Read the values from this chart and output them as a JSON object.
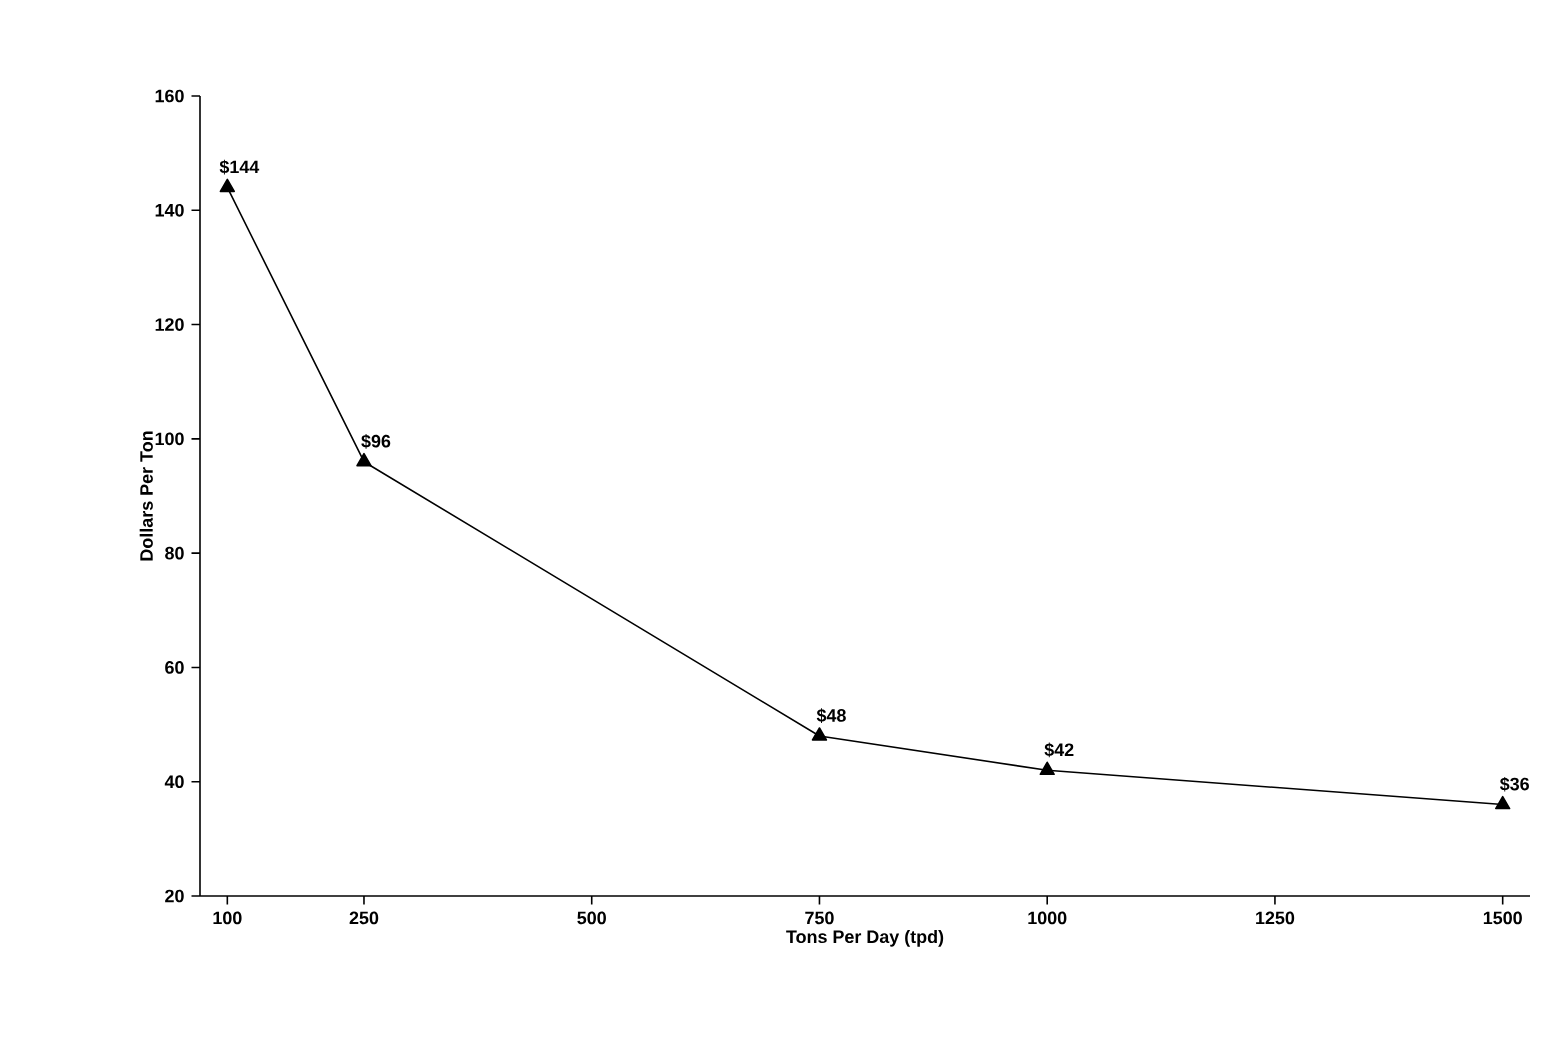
{
  "chart_data": {
    "type": "line",
    "xlabel": "Tons Per Day (tpd)",
    "ylabel": "Dollars Per Ton",
    "x": [
      100,
      250,
      750,
      1000,
      1500
    ],
    "series": [
      {
        "color": "#000000",
        "values": [
          144,
          96,
          48,
          42,
          36
        ],
        "value_labels": [
          "$144",
          "$96",
          "$48",
          "$42",
          "$36"
        ]
      }
    ],
    "xlim": [
      70,
      1530
    ],
    "xticks": [
      100,
      250,
      500,
      750,
      1000,
      1250,
      1500
    ],
    "ylim": [
      20,
      160
    ],
    "yticks": [
      20,
      40,
      60,
      80,
      100,
      120,
      140,
      160
    ],
    "marker": "triangle",
    "line_style": "solid",
    "grid": false
  }
}
